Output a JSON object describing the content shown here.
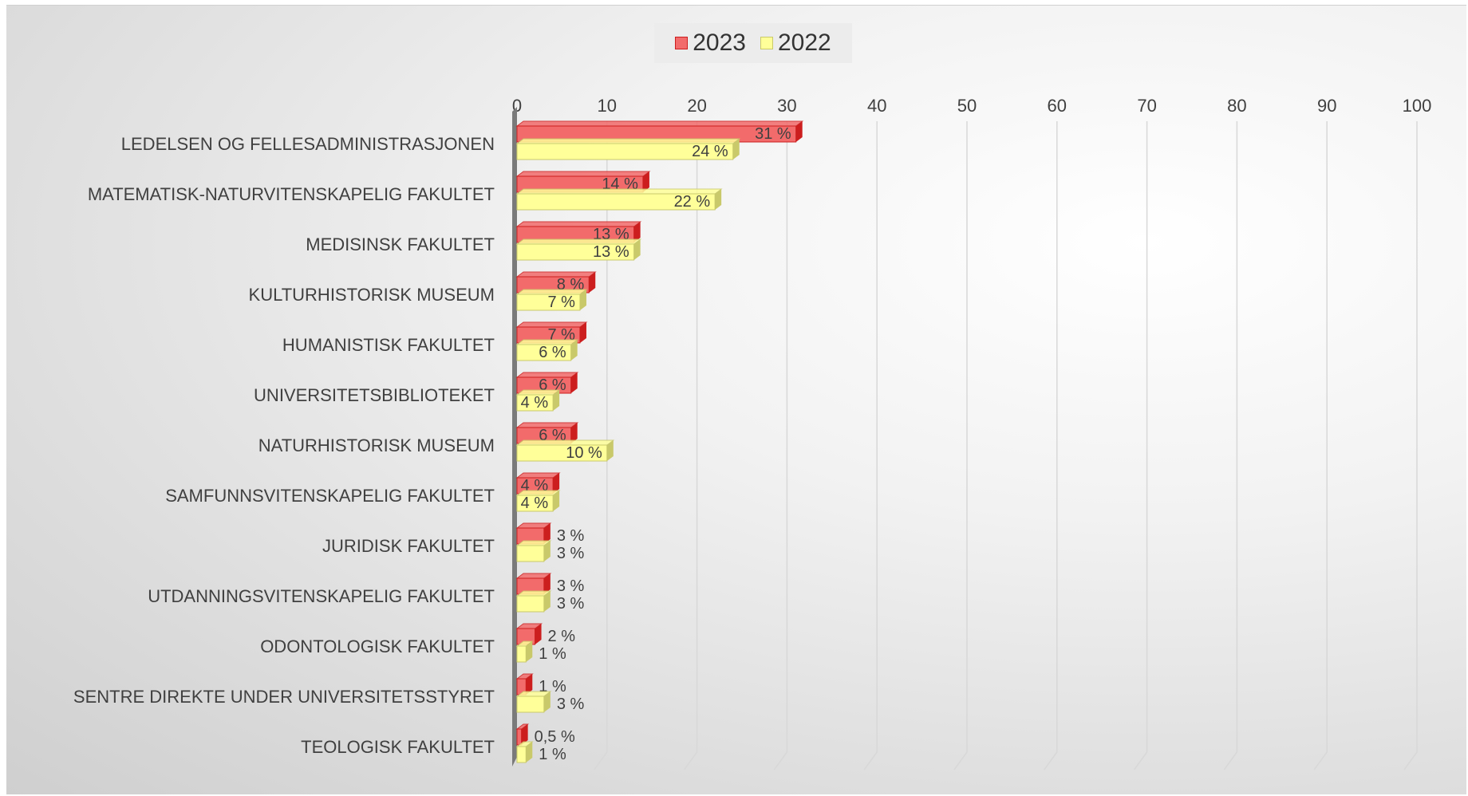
{
  "chart_data": {
    "type": "bar",
    "orientation": "horizontal",
    "categories": [
      "LEDELSEN OG FELLESADMINISTRASJONEN",
      "MATEMATISK-NATURVITENSKAPELIG FAKULTET",
      "MEDISINSK FAKULTET",
      "KULTURHISTORISK MUSEUM",
      "HUMANISTISK FAKULTET",
      "UNIVERSITETSBIBLIOTEKET",
      "NATURHISTORISK MUSEUM",
      "SAMFUNNSVITENSKAPELIG FAKULTET",
      "JURIDISK FAKULTET",
      "UTDANNINGSVITENSKAPELIG FAKULTET",
      "ODONTOLOGISK FAKULTET",
      "SENTRE DIREKTE UNDER UNIVERSITETSSTYRET",
      "TEOLOGISK FAKULTET"
    ],
    "series": [
      {
        "name": "2023",
        "color": "#f26b6b",
        "edge": "#cc1e1e",
        "values": [
          31,
          14,
          13,
          8,
          7,
          6,
          6,
          4,
          3,
          3,
          2,
          1,
          0.5
        ],
        "labels": [
          "31 %",
          "14 %",
          "13 %",
          "8 %",
          "7 %",
          "6 %",
          "6 %",
          "4 %",
          "3 %",
          "3 %",
          "2 %",
          "1 %",
          "0,5 %"
        ]
      },
      {
        "name": "2022",
        "color": "#ffff99",
        "edge": "#c9c96a",
        "values": [
          24,
          22,
          13,
          7,
          6,
          4,
          10,
          4,
          3,
          3,
          1,
          3,
          1
        ],
        "labels": [
          "24 %",
          "22 %",
          "13 %",
          "7 %",
          "6 %",
          "4 %",
          "10 %",
          "4 %",
          "3 %",
          "3 %",
          "1 %",
          "3 %",
          "1 %"
        ]
      }
    ],
    "xlim": [
      0,
      100
    ],
    "xticks": [
      "0",
      "10",
      "20",
      "30",
      "40",
      "50",
      "60",
      "70",
      "80",
      "90",
      "100"
    ],
    "title": "",
    "xlabel": "",
    "ylabel": "",
    "grid": true,
    "legend": "top-center"
  }
}
